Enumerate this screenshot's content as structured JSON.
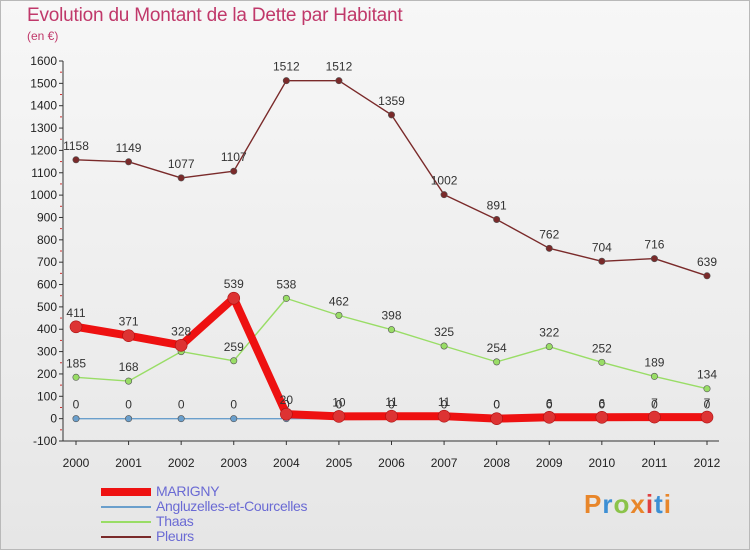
{
  "header": {
    "title": "Evolution du Montant de la Dette par Habitant",
    "subtitle": "(en €)"
  },
  "logo": {
    "text": "Proxiti",
    "colors": [
      "#e8862a",
      "#3d8fd4",
      "#8bc34a",
      "#e8862a",
      "#e04040",
      "#3d8fd4",
      "#e8862a"
    ]
  },
  "chart_data": {
    "type": "line",
    "title": "Evolution du Montant de la Dette par Habitant",
    "subtitle": "(en €)",
    "x": [
      "2000",
      "2001",
      "2002",
      "2003",
      "2004",
      "2005",
      "2006",
      "2007",
      "2008",
      "2009",
      "2010",
      "2011",
      "2012"
    ],
    "ylim": [
      -100,
      1600
    ],
    "yticks": [
      -100,
      0,
      100,
      200,
      300,
      400,
      500,
      600,
      700,
      800,
      900,
      1000,
      1100,
      1200,
      1300,
      1400,
      1500,
      1600
    ],
    "grid": false,
    "legend_position": "bottom-left",
    "series": [
      {
        "name": "MARIGNY",
        "color": "#ee1111",
        "values": [
          411,
          371,
          328,
          539,
          20,
          10,
          11,
          11,
          0,
          6,
          6,
          7,
          7
        ],
        "labels": [
          "411",
          "371",
          "328",
          "539",
          "20",
          "10",
          "11",
          "11",
          "0",
          "6",
          "6",
          "7",
          "7"
        ]
      },
      {
        "name": "Angluzelles-et-Courcelles",
        "color": "#6a9fcc",
        "values": [
          0,
          0,
          0,
          0,
          0,
          0,
          0,
          0,
          0,
          0,
          0,
          0,
          0
        ],
        "labels": [
          "0",
          "0",
          "0",
          "0",
          "0",
          "0",
          "0",
          "0",
          "0",
          "0",
          "0",
          "0",
          "0"
        ]
      },
      {
        "name": "Thaas",
        "color": "#99dd66",
        "values": [
          185,
          168,
          300,
          259,
          538,
          462,
          398,
          325,
          254,
          322,
          252,
          189,
          134
        ],
        "labels": [
          "185",
          "168",
          "",
          "259",
          "538",
          "462",
          "398",
          "325",
          "254",
          "322",
          "252",
          "189",
          "134"
        ]
      },
      {
        "name": "Pleurs",
        "color": "#7a2a2a",
        "values": [
          1158,
          1149,
          1077,
          1107,
          1512,
          1512,
          1359,
          1002,
          891,
          762,
          704,
          716,
          639
        ],
        "labels": [
          "1158",
          "1149",
          "1077",
          "1107",
          "1512",
          "1512",
          "1359",
          "1002",
          "891",
          "762",
          "704",
          "716",
          "639"
        ]
      }
    ]
  }
}
